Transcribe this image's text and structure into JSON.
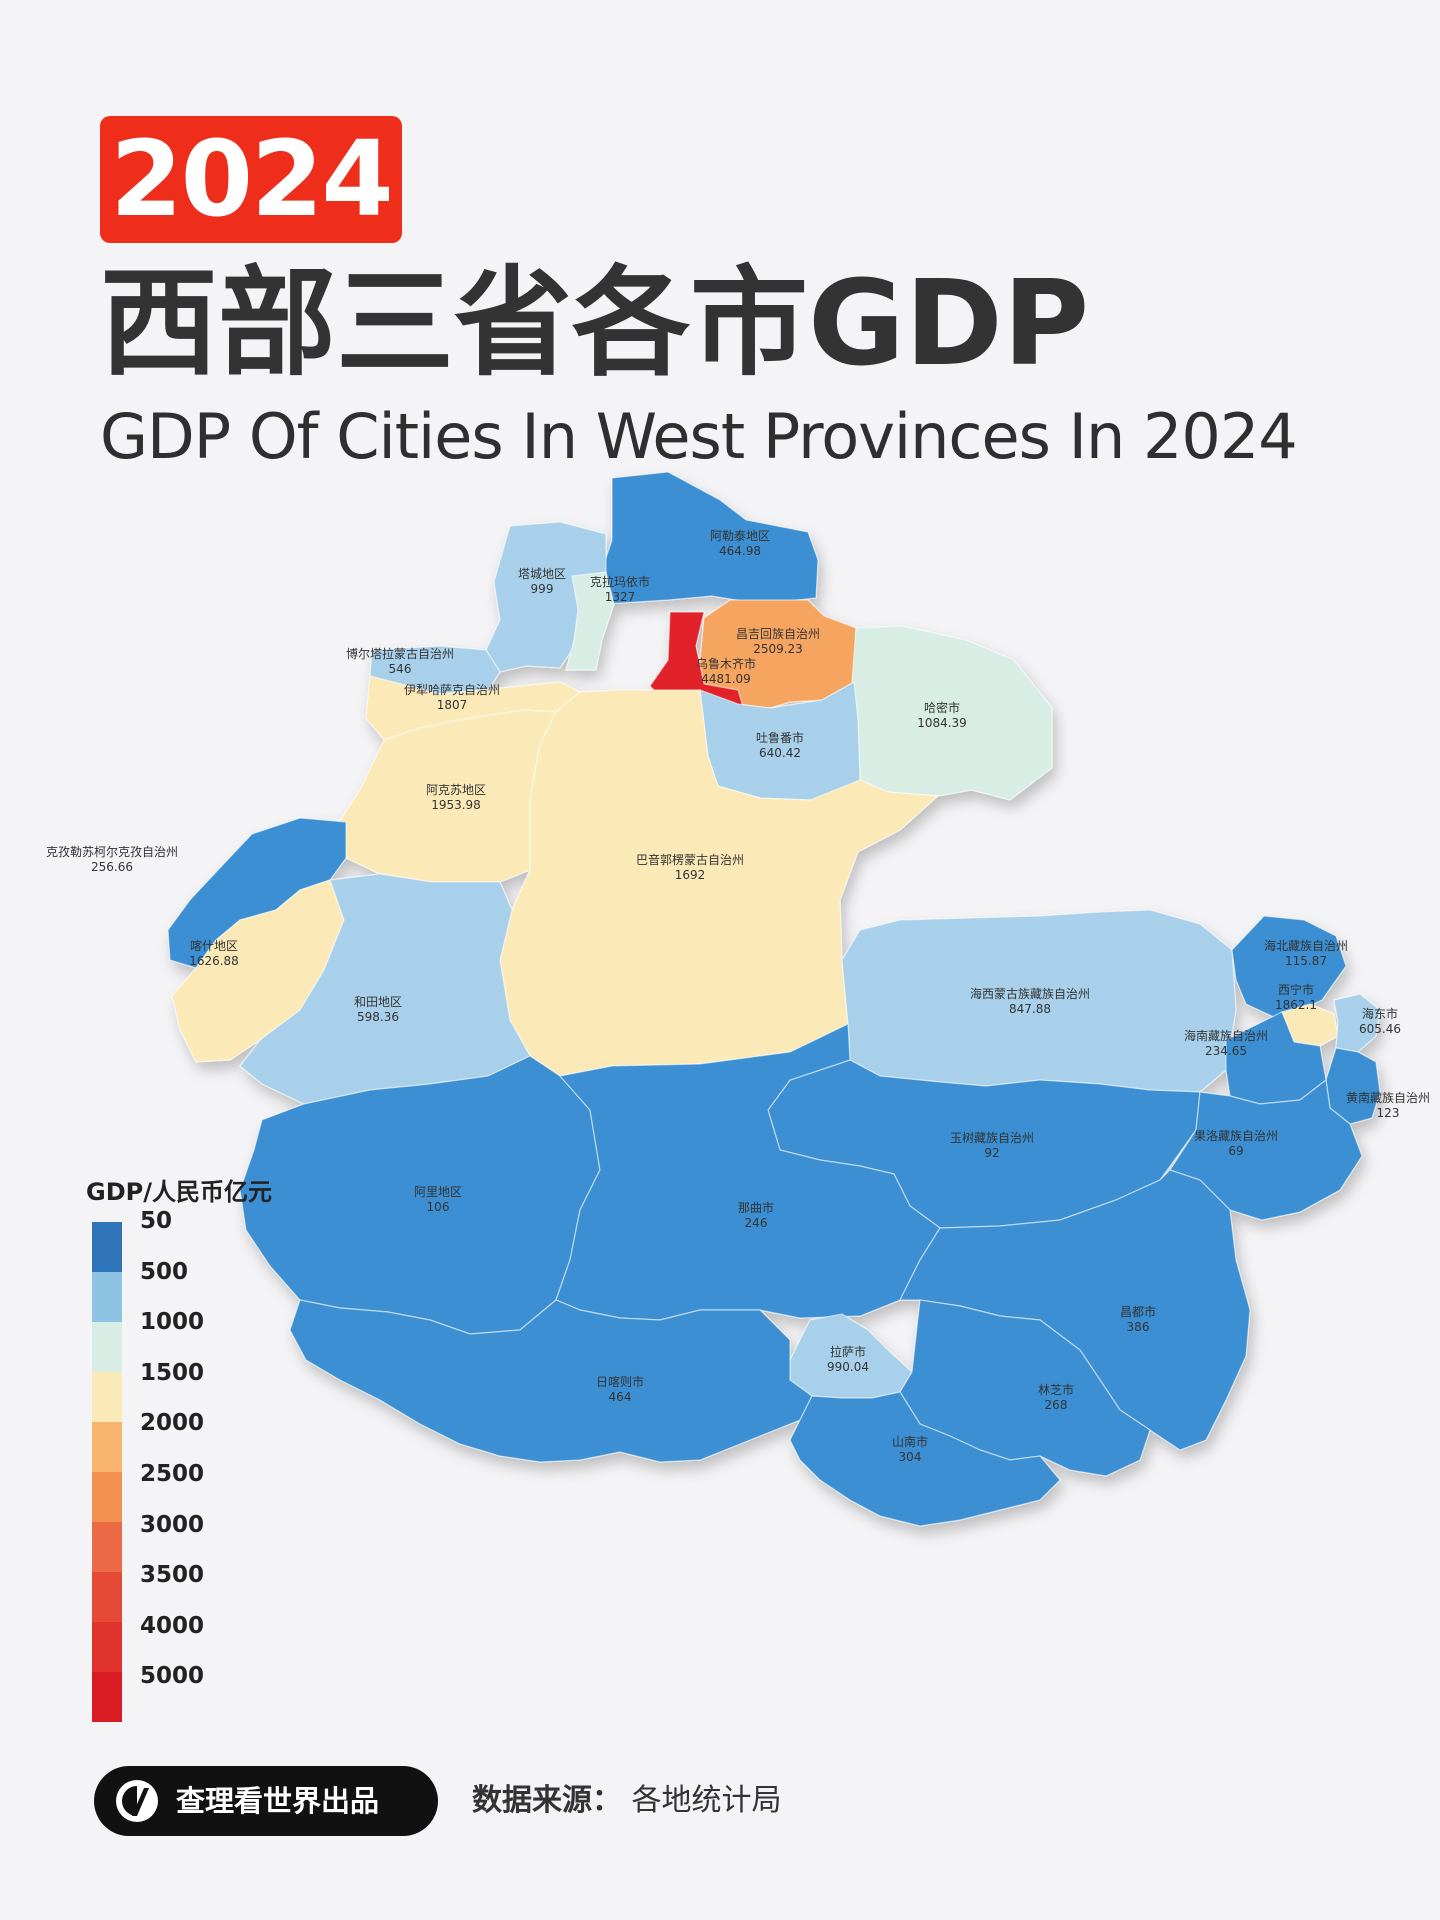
{
  "header": {
    "year": "2024",
    "title_cn": "西部三省各市GDP",
    "title_en": "GDP Of Cities In West Provinces In 2024"
  },
  "colors": {
    "deep_blue": "#3a8fd2",
    "light_blue": "#a8d0ea",
    "pale_green": "#d8ede4",
    "cream": "#fbeab8",
    "orange": "#f6a560",
    "red": "#e1242a"
  },
  "map": {
    "regions": [
      {
        "name": "阿勒泰地区",
        "value": "464.98",
        "gdp": 464.98
      },
      {
        "name": "塔城地区",
        "value": "999",
        "gdp": 999
      },
      {
        "name": "克拉玛依市",
        "value": "1327",
        "gdp": 1327
      },
      {
        "name": "博尔塔拉蒙古自治州",
        "value": "546",
        "gdp": 546
      },
      {
        "name": "昌吉回族自治州",
        "value": "2509.23",
        "gdp": 2509.23
      },
      {
        "name": "乌鲁木齐市",
        "value": "4481.09",
        "gdp": 4481.09
      },
      {
        "name": "伊犁哈萨克自治州",
        "value": "1807",
        "gdp": 1807
      },
      {
        "name": "哈密市",
        "value": "1084.39",
        "gdp": 1084.39
      },
      {
        "name": "吐鲁番市",
        "value": "640.42",
        "gdp": 640.42
      },
      {
        "name": "阿克苏地区",
        "value": "1953.98",
        "gdp": 1953.98
      },
      {
        "name": "克孜勒苏柯尔克孜自治州",
        "value": "256.66",
        "gdp": 256.66
      },
      {
        "name": "巴音郭楞蒙古自治州",
        "value": "1692",
        "gdp": 1692
      },
      {
        "name": "喀什地区",
        "value": "1626.88",
        "gdp": 1626.88
      },
      {
        "name": "和田地区",
        "value": "598.36",
        "gdp": 598.36
      },
      {
        "name": "海西蒙古族藏族自治州",
        "value": "847.88",
        "gdp": 847.88
      },
      {
        "name": "海北藏族自治州",
        "value": "115.87",
        "gdp": 115.87
      },
      {
        "name": "西宁市",
        "value": "1862.1",
        "gdp": 1862.1
      },
      {
        "name": "海东市",
        "value": "605.46",
        "gdp": 605.46
      },
      {
        "name": "海南藏族自治州",
        "value": "234.65",
        "gdp": 234.65
      },
      {
        "name": "黄南藏族自治州",
        "value": "123",
        "gdp": 123
      },
      {
        "name": "玉树藏族自治州",
        "value": "92",
        "gdp": 92
      },
      {
        "name": "果洛藏族自治州",
        "value": "69",
        "gdp": 69
      },
      {
        "name": "阿里地区",
        "value": "106",
        "gdp": 106
      },
      {
        "name": "那曲市",
        "value": "246",
        "gdp": 246
      },
      {
        "name": "昌都市",
        "value": "386",
        "gdp": 386
      },
      {
        "name": "拉萨市",
        "value": "990.04",
        "gdp": 990.04
      },
      {
        "name": "日喀则市",
        "value": "464",
        "gdp": 464
      },
      {
        "name": "林芝市",
        "value": "268",
        "gdp": 268
      },
      {
        "name": "山南市",
        "value": "304",
        "gdp": 304
      }
    ]
  },
  "legend": {
    "title": "GDP/人民币亿元",
    "labels": [
      "50",
      "500",
      "1000",
      "1500",
      "2000",
      "2500",
      "3000",
      "3500",
      "4000",
      "5000"
    ],
    "colors": [
      "#2f74b8",
      "#8fc3e3",
      "#d8ede4",
      "#fbeab8",
      "#f8b46c",
      "#f4904f",
      "#ec6a45",
      "#e54a36",
      "#e0322c",
      "#d81e24"
    ]
  },
  "footer": {
    "brand": "查理看世界出品",
    "source_label": "数据来源：",
    "source_value": "各地统计局"
  }
}
